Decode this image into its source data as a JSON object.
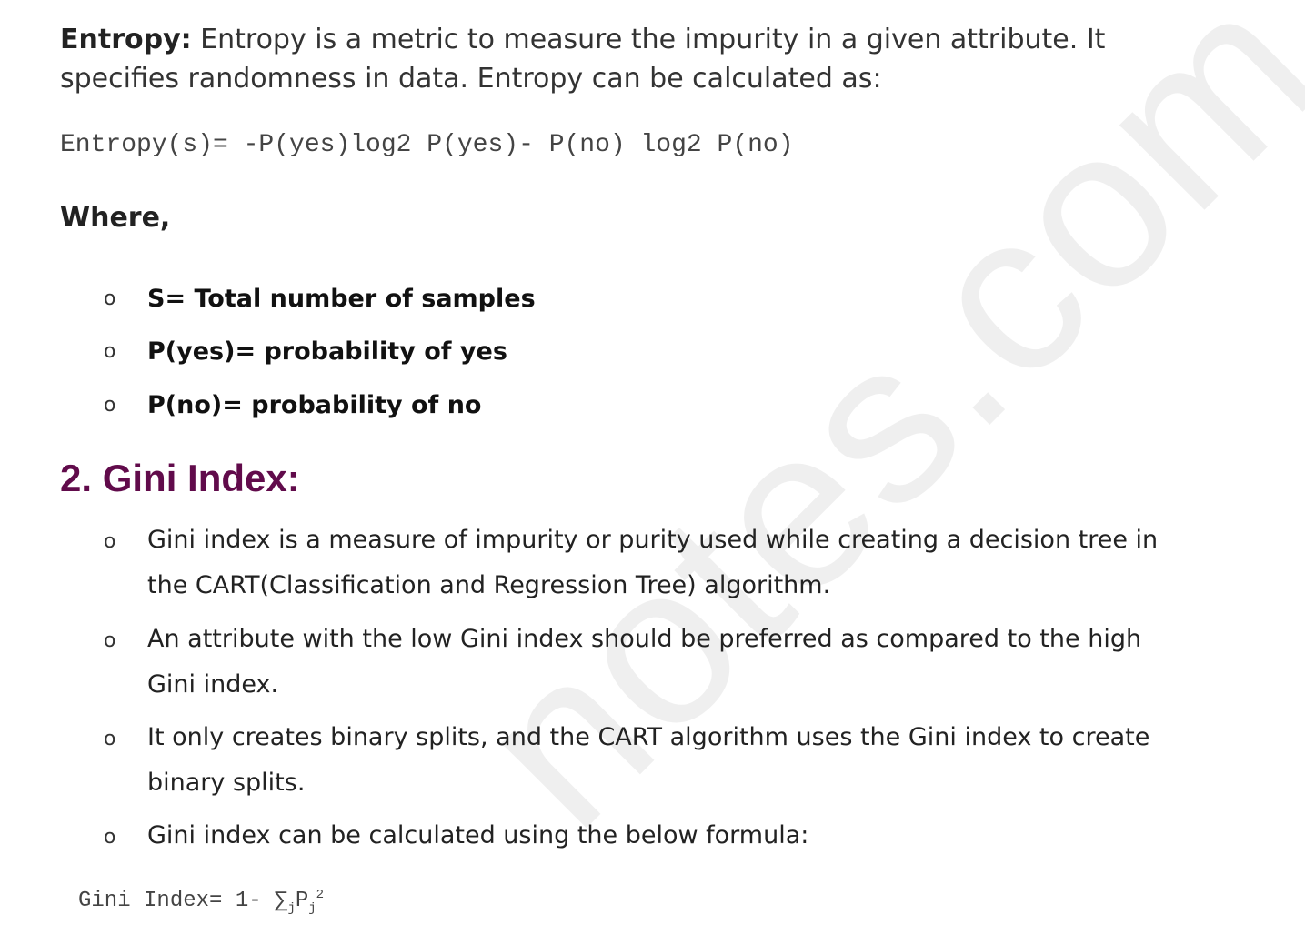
{
  "watermark": "notes.com",
  "entropy": {
    "term": "Entropy:",
    "description": " Entropy is a metric to measure the impurity in a given attribute. It specifies randomness in data. Entropy can be calculated as:",
    "formula": "Entropy(s)= -P(yes)log2 P(yes)- P(no) log2 P(no)",
    "where_label": "Where,",
    "definitions": [
      "S= Total number of samples",
      "P(yes)= probability of yes",
      "P(no)= probability of no"
    ]
  },
  "gini": {
    "heading": "2. Gini Index:",
    "items": [
      "Gini index is a measure of impurity or purity used while creating a decision tree in the CART(Classification and Regression Tree) algorithm.",
      "An attribute with the low Gini index should be preferred as compared to the high Gini index.",
      "It only creates binary splits, and the CART algorithm uses the Gini index to create binary splits.",
      "Gini index can be calculated using the below formula:"
    ],
    "formula_prefix": "Gini Index= 1- ∑",
    "formula_sub_j": "j",
    "formula_p": "P",
    "formula_sub_j2": "j",
    "formula_sup": "2"
  },
  "bullet_glyph": "o"
}
